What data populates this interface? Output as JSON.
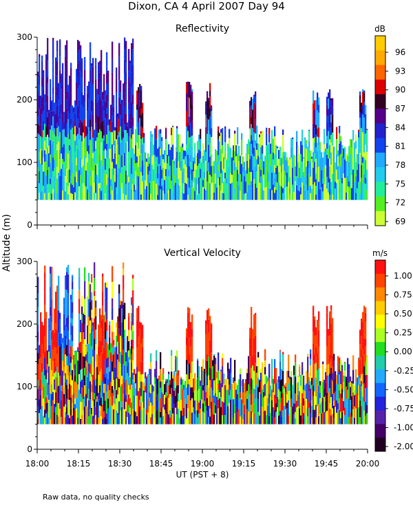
{
  "figure": {
    "title": "Dixon, CA   4 April 2007   Day  94",
    "ylabel": "Altitude (m)",
    "xlabel": "UT  (PST + 8)",
    "footnote": "Raw data, no quality checks"
  },
  "chart_data": [
    {
      "type": "heatmap",
      "title": "Reflectivity",
      "colorbar_unit": "dB",
      "x_ticks": [
        "18:00",
        "18:15",
        "18:30",
        "18:45",
        "19:00",
        "19:15",
        "19:30",
        "19:45",
        "20:00"
      ],
      "x_range": [
        "18:00",
        "20:00"
      ],
      "y_ticks": [
        0,
        100,
        200,
        300
      ],
      "ylim": [
        0,
        300
      ],
      "colorbar_ticks": [
        "69",
        "72",
        "75",
        "78",
        "81",
        "84",
        "87",
        "90",
        "93",
        "96"
      ],
      "colormap": [
        "#ccff33",
        "#55ee22",
        "#22ee99",
        "#22ccee",
        "#22aaff",
        "#1144ee",
        "#2222cc",
        "#550088",
        "#330022",
        "#dd0000",
        "#ff6600",
        "#ffaa00",
        "#ffcc00"
      ],
      "data_floor_altitude": 40,
      "note": "Radar return columns concentrated between 40 and 140 m; echoes extend up to ~300 m during 18:00–18:35 and in plumes reaching ~200 m near 18:37, 18:55, 19:18, 19:41, 19:46 and 20:00."
    },
    {
      "type": "heatmap",
      "title": "Vertical Velocity",
      "colorbar_unit": "m/s",
      "x_ticks": [
        "18:00",
        "18:15",
        "18:30",
        "18:45",
        "19:00",
        "19:15",
        "19:30",
        "19:45",
        "20:00"
      ],
      "x_range": [
        "18:00",
        "20:00"
      ],
      "y_ticks": [
        0,
        100,
        200,
        300
      ],
      "ylim": [
        0,
        300
      ],
      "colorbar_ticks": [
        "1.00",
        "0.75",
        "0.50",
        "0.25",
        "0.00",
        "-0.25",
        "-0.50",
        "-0.75",
        "-1.00",
        "-2.00"
      ],
      "colormap": [
        "#ff1111",
        "#ff4400",
        "#ff8800",
        "#ffcc00",
        "#ffff00",
        "#aaff22",
        "#22dd22",
        "#22ccaa",
        "#22aaff",
        "#1166ff",
        "#2222dd",
        "#5522aa",
        "#440066",
        "#220022"
      ],
      "data_floor_altitude": 40,
      "note": "Strong updrafts (>1 m/s, red) in thermal plumes near 18:23, 18:37, 19:00, 19:07, 19:18, 19:43, 19:47 and 20:00; downdrafts (blue) dominate 18:00–18:15 above 150 m."
    }
  ]
}
